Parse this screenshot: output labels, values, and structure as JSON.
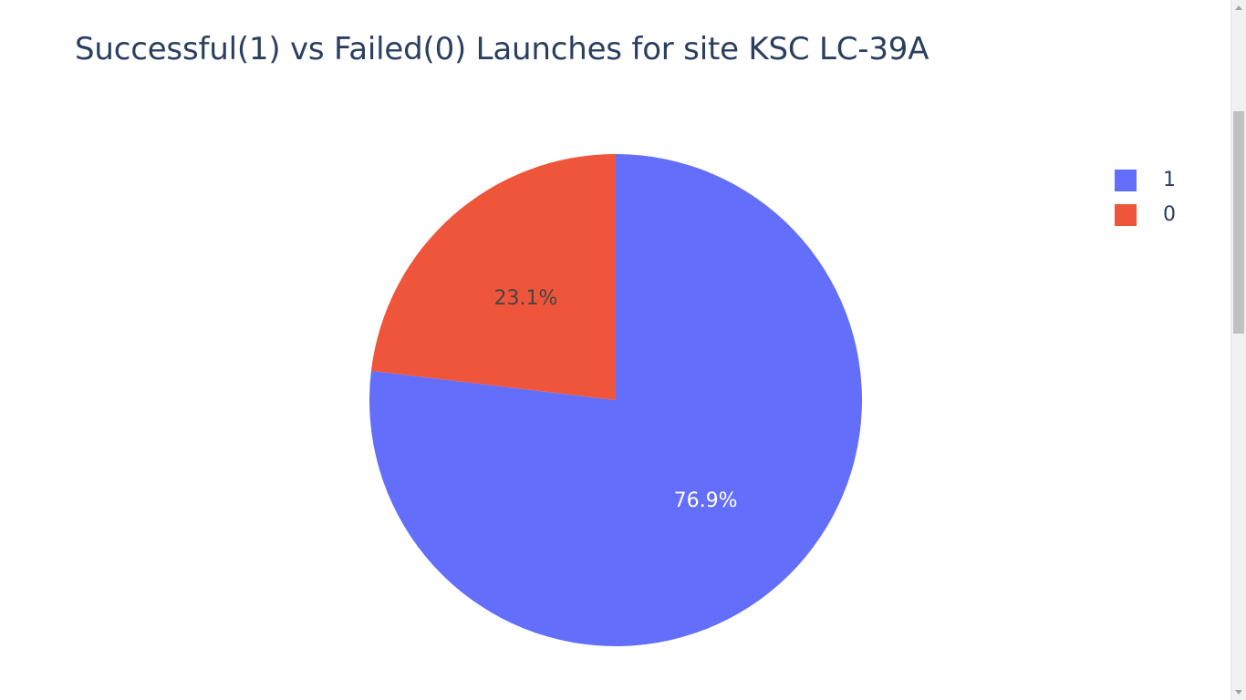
{
  "chart_data": {
    "type": "pie",
    "title": "Successful(1) vs Failed(0) Launches for site KSC LC-39A",
    "categories": [
      "1",
      "0"
    ],
    "values": [
      76.9,
      23.1
    ],
    "labels": [
      "76.9%",
      "23.1%"
    ],
    "colors": [
      "#636efa",
      "#ef553b"
    ],
    "label_colors": [
      "#ffffff",
      "#444444"
    ],
    "legend": [
      "1",
      "0"
    ],
    "legend_position": "top-right"
  }
}
